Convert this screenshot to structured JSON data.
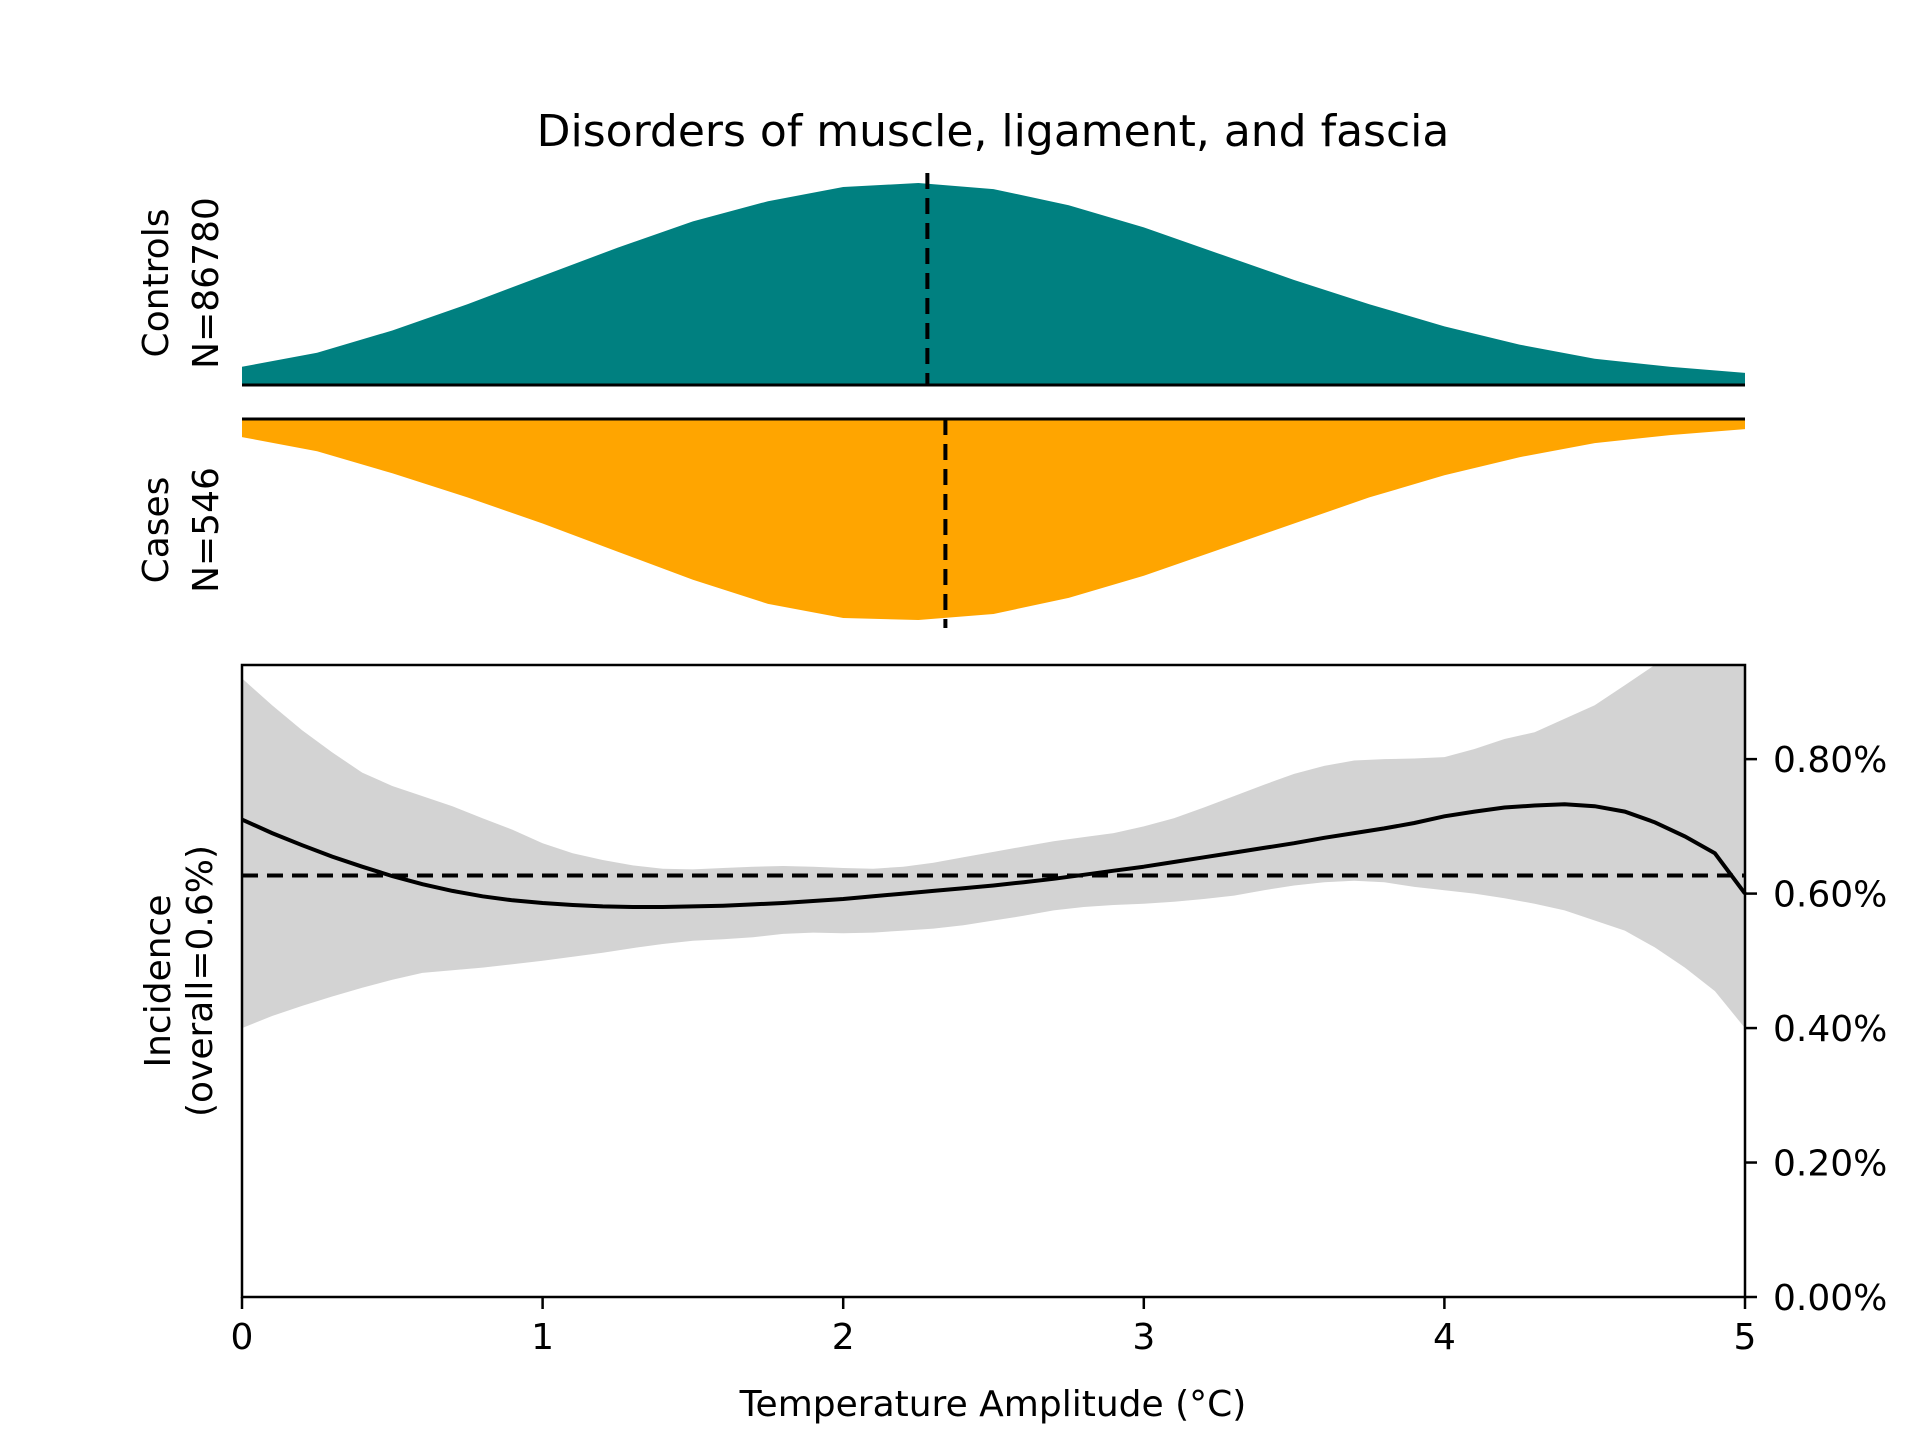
{
  "chart_data": {
    "type": "area",
    "title": "Disorders of muscle, ligament, and fascia",
    "xlabel": "Temperature Amplitude (°C)",
    "xlim": [
      0,
      5
    ],
    "x_ticks": [
      0,
      1,
      2,
      3,
      4,
      5
    ],
    "x_tick_labels": [
      "0",
      "1",
      "2",
      "3",
      "4",
      "5"
    ],
    "colors": {
      "controls": "#008080",
      "cases": "#FFA500",
      "ci_band": "#d3d3d3",
      "line": "#000000"
    },
    "controls": {
      "label_line1": "Controls",
      "label_line2": "N=86780",
      "mean": 2.28,
      "x": [
        0,
        0.25,
        0.5,
        0.75,
        1.0,
        1.25,
        1.5,
        1.75,
        2.0,
        2.25,
        2.5,
        2.75,
        3.0,
        3.25,
        3.5,
        3.75,
        4.0,
        4.25,
        4.5,
        4.75,
        5.0
      ],
      "density": [
        0.09,
        0.16,
        0.27,
        0.4,
        0.54,
        0.68,
        0.81,
        0.91,
        0.98,
        1.0,
        0.97,
        0.89,
        0.78,
        0.65,
        0.52,
        0.4,
        0.29,
        0.2,
        0.13,
        0.09,
        0.06
      ]
    },
    "cases": {
      "label_line1": "Cases",
      "label_line2": "N=546",
      "mean": 2.34,
      "x": [
        0,
        0.25,
        0.5,
        0.75,
        1.0,
        1.25,
        1.5,
        1.75,
        2.0,
        2.25,
        2.5,
        2.75,
        3.0,
        3.25,
        3.5,
        3.75,
        4.0,
        4.25,
        4.5,
        4.75,
        5.0
      ],
      "density": [
        0.09,
        0.16,
        0.27,
        0.39,
        0.52,
        0.66,
        0.8,
        0.92,
        0.99,
        1.0,
        0.97,
        0.89,
        0.78,
        0.65,
        0.52,
        0.39,
        0.28,
        0.19,
        0.12,
        0.08,
        0.05
      ]
    },
    "incidence": {
      "ylabel_line1": "Incidence",
      "ylabel_line2": "(overall=0.6%)",
      "ylim": [
        0,
        0.0094
      ],
      "y_ticks": [
        0,
        0.002,
        0.004,
        0.006,
        0.008
      ],
      "y_tick_labels": [
        "0.00%",
        "0.20%",
        "0.40%",
        "0.60%",
        "0.80%"
      ],
      "overall": 0.00627,
      "x": [
        0,
        0.1,
        0.2,
        0.3,
        0.4,
        0.5,
        0.6,
        0.7,
        0.8,
        0.9,
        1.0,
        1.1,
        1.2,
        1.3,
        1.4,
        1.5,
        1.6,
        1.7,
        1.8,
        1.9,
        2.0,
        2.1,
        2.2,
        2.3,
        2.4,
        2.5,
        2.6,
        2.7,
        2.8,
        2.9,
        3.0,
        3.1,
        3.2,
        3.3,
        3.4,
        3.5,
        3.6,
        3.7,
        3.8,
        3.9,
        4.0,
        4.1,
        4.2,
        4.3,
        4.4,
        4.5,
        4.6,
        4.7,
        4.8,
        4.9,
        5.0
      ],
      "mean": [
        0.0071,
        0.0069,
        0.00672,
        0.00655,
        0.0064,
        0.00626,
        0.00614,
        0.00604,
        0.00596,
        0.0059,
        0.00586,
        0.00583,
        0.00581,
        0.0058,
        0.0058,
        0.00581,
        0.00582,
        0.00584,
        0.00586,
        0.00589,
        0.00592,
        0.00596,
        0.006,
        0.00604,
        0.00608,
        0.00612,
        0.00617,
        0.00622,
        0.00628,
        0.00634,
        0.0064,
        0.00647,
        0.00654,
        0.00661,
        0.00668,
        0.00675,
        0.00683,
        0.0069,
        0.00697,
        0.00705,
        0.00715,
        0.00722,
        0.00728,
        0.00731,
        0.00733,
        0.0073,
        0.00722,
        0.00706,
        0.00685,
        0.0066,
        0.006
      ],
      "ci_low": [
        0.004,
        0.00418,
        0.00433,
        0.00447,
        0.0046,
        0.00472,
        0.00482,
        0.00486,
        0.0049,
        0.00495,
        0.005,
        0.00506,
        0.00512,
        0.00519,
        0.00525,
        0.0053,
        0.00532,
        0.00535,
        0.0054,
        0.00542,
        0.00541,
        0.00542,
        0.00545,
        0.00548,
        0.00553,
        0.0056,
        0.00567,
        0.00575,
        0.0058,
        0.00583,
        0.00585,
        0.00588,
        0.00592,
        0.00597,
        0.00605,
        0.00612,
        0.00617,
        0.00619,
        0.00617,
        0.0061,
        0.00605,
        0.006,
        0.00593,
        0.00585,
        0.00575,
        0.0056,
        0.00545,
        0.0052,
        0.0049,
        0.00455,
        0.004
      ],
      "ci_high": [
        0.0092,
        0.0088,
        0.00843,
        0.0081,
        0.0078,
        0.0076,
        0.00745,
        0.0073,
        0.00712,
        0.00695,
        0.00675,
        0.0066,
        0.0065,
        0.00642,
        0.00637,
        0.00636,
        0.00638,
        0.0064,
        0.00641,
        0.0064,
        0.00638,
        0.00637,
        0.0064,
        0.00646,
        0.00654,
        0.00662,
        0.0067,
        0.00678,
        0.00684,
        0.0069,
        0.007,
        0.00712,
        0.00728,
        0.00745,
        0.00762,
        0.00778,
        0.0079,
        0.00798,
        0.008,
        0.00801,
        0.00803,
        0.00815,
        0.0083,
        0.0084,
        0.0086,
        0.0088,
        0.0091,
        0.0094,
        0.00965,
        0.0099,
        0.0102
      ]
    }
  }
}
